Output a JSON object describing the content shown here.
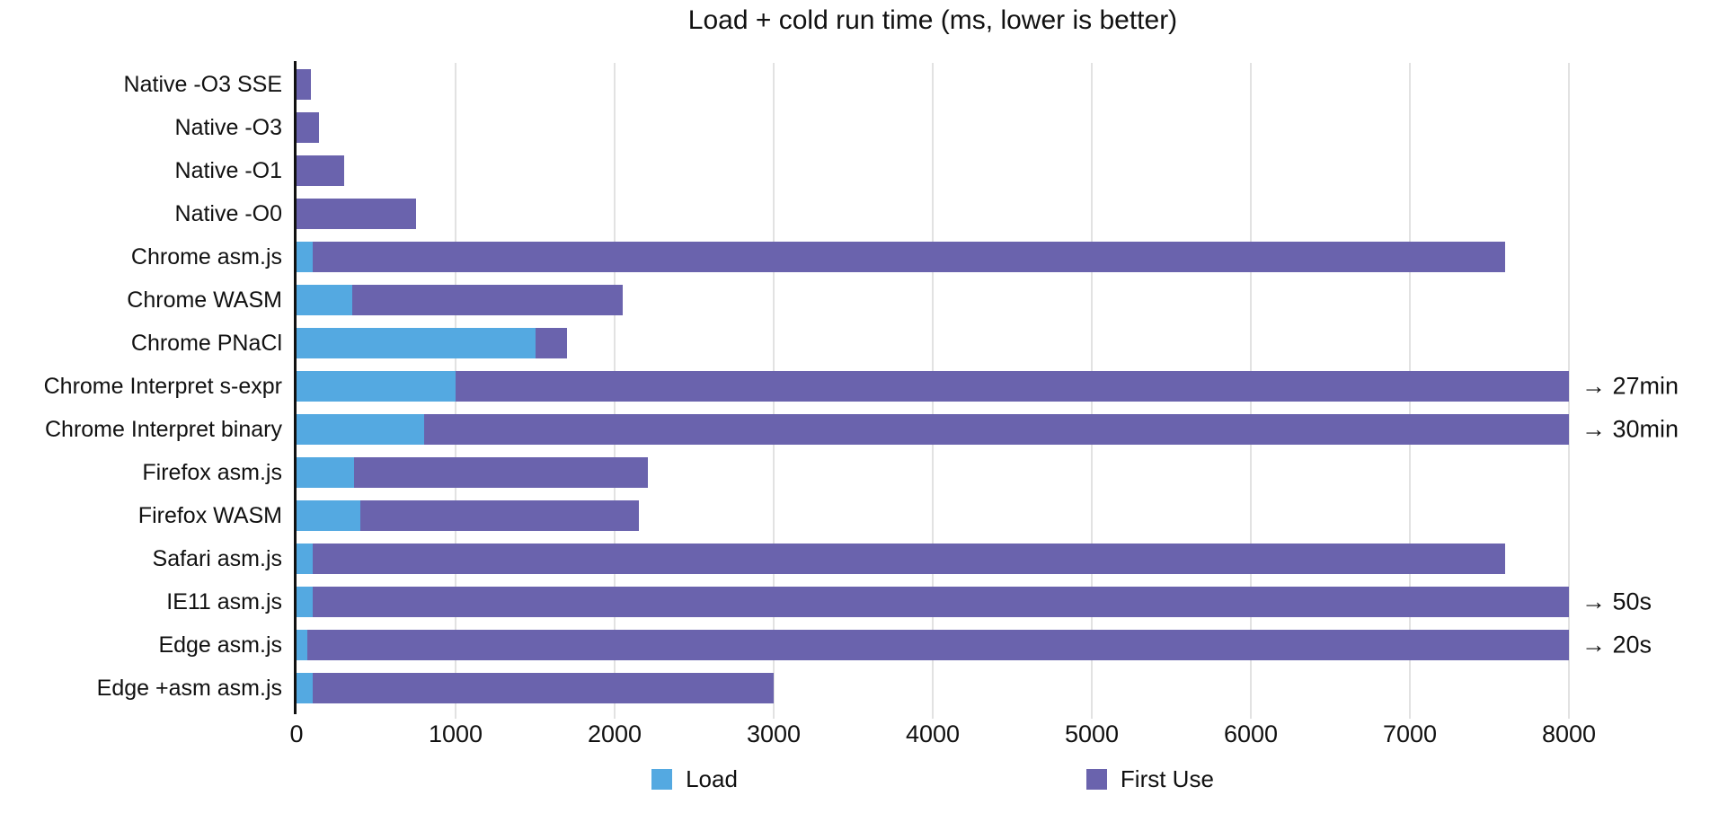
{
  "chart_data": {
    "type": "bar",
    "orientation": "horizontal",
    "stacked": true,
    "title": "Load + cold run time (ms, lower is better)",
    "xlabel": "",
    "ylabel": "",
    "xlim": [
      0,
      8000
    ],
    "xticks": [
      0,
      1000,
      2000,
      3000,
      4000,
      5000,
      6000,
      7000,
      8000
    ],
    "grid": "vertical-light",
    "legend_position": "bottom",
    "categories": [
      "Native -O3 SSE",
      "Native -O3",
      "Native -O1",
      "Native -O0",
      "Chrome asm.js",
      "Chrome WASM",
      "Chrome PNaCl",
      "Chrome Interpret s-expr",
      "Chrome Interpret binary",
      "Firefox asm.js",
      "Firefox WASM",
      "Safari asm.js",
      "IE11 asm.js",
      "Edge asm.js",
      "Edge +asm asm.js"
    ],
    "series": [
      {
        "name": "Load",
        "color": "#54a9e1",
        "values": [
          0,
          0,
          0,
          0,
          100,
          350,
          1500,
          1000,
          800,
          360,
          400,
          100,
          100,
          70,
          100
        ]
      },
      {
        "name": "First Use",
        "color": "#6a63ad",
        "values": [
          90,
          140,
          300,
          750,
          7500,
          1700,
          200,
          7000,
          7200,
          1850,
          1750,
          7500,
          7900,
          7930,
          2900
        ]
      }
    ],
    "bars_clipped_at_xmax": [
      "Chrome Interpret s-expr",
      "Chrome Interpret binary",
      "IE11 asm.js",
      "Edge asm.js"
    ],
    "annotations": [
      {
        "index": 7,
        "category": "Chrome Interpret s-expr",
        "text": "→ 27min"
      },
      {
        "index": 8,
        "category": "Chrome Interpret binary",
        "text": "→ 30min"
      },
      {
        "index": 12,
        "category": "IE11 asm.js",
        "text": "→ 50s"
      },
      {
        "index": 13,
        "category": "Edge asm.js",
        "text": "→ 20s"
      }
    ],
    "colors": {
      "axis_line": "#111111",
      "gridline": "#e2e2e2",
      "text": "#111111",
      "background": "#ffffff"
    }
  }
}
